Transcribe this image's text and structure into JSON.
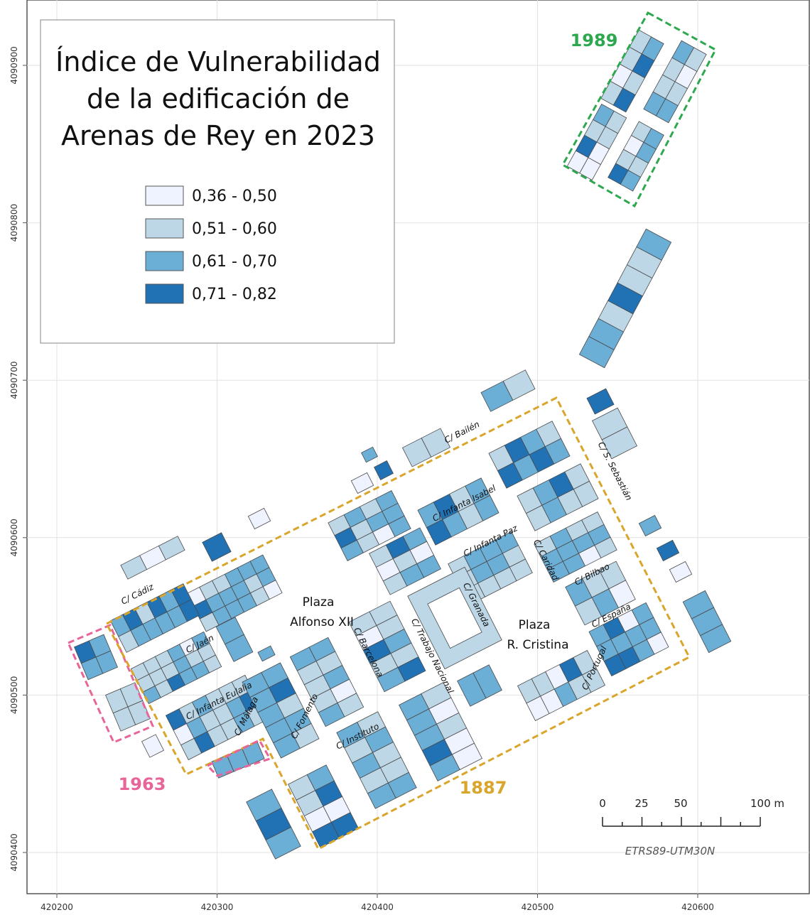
{
  "title_lines": [
    "Índice de Vulnerabilidad",
    "de la edificación de",
    "Arenas de Rey en 2023"
  ],
  "legend": [
    {
      "label": "0,36 - 0,50",
      "color": "#eff3ff"
    },
    {
      "label": "0,51 - 0,60",
      "color": "#bdd7e7"
    },
    {
      "label": "0,61 - 0,70",
      "color": "#6baed6"
    },
    {
      "label": "0,71 - 0,82",
      "color": "#2171b5"
    }
  ],
  "streets": [
    "C/ Bailén",
    "C/ Infanta Isabel",
    "C/ Infanta Paz",
    "C/ Caridad",
    "C/ S. Sebastián",
    "C/ Bilbao",
    "C/ España",
    "C/ Portugal",
    "C/ Granada",
    "C/ Trabajo Nacional",
    "C/ Barcelona",
    "C/ Fomento",
    "C/ Instituto",
    "C/ Málaga",
    "C/ Infanta Eulalia",
    "C/ Jaén",
    "C/ Cádiz"
  ],
  "plazas": [
    [
      "Plaza",
      "Alfonso XII"
    ],
    [
      "Plaza",
      "R. Cristina"
    ]
  ],
  "periods": [
    {
      "label": "1989",
      "color": "#2ea84f"
    },
    {
      "label": "1963",
      "color": "#e8659a"
    },
    {
      "label": "1887",
      "color": "#d9a52a"
    }
  ],
  "scale_bar": [
    "0",
    "25",
    "50",
    "100 m"
  ],
  "crs": "ETRS89-UTM30N",
  "grid": {
    "xticks": [
      420200,
      420300,
      420400,
      420500,
      420600
    ],
    "yticks": [
      4090400,
      4090500,
      4090600,
      4090700,
      4090800,
      4090900
    ]
  }
}
